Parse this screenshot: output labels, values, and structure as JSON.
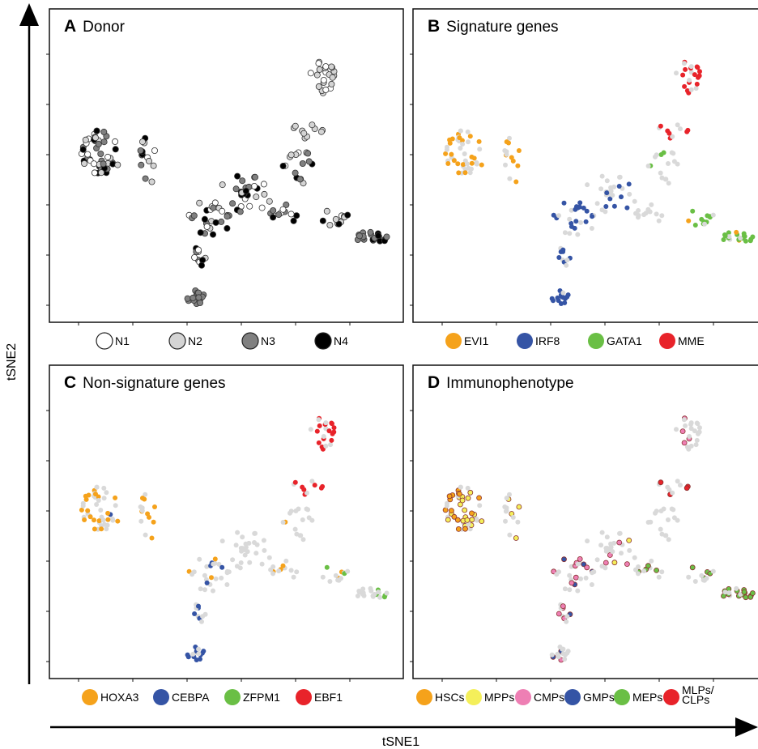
{
  "axes": {
    "x_label": "tSNE1",
    "y_label": "tSNE2"
  },
  "colors": {
    "N1": "#ffffff",
    "N2": "#d4d4d4",
    "N3": "#808080",
    "N4": "#000000",
    "orange": "#f5a21b",
    "blue": "#3554a5",
    "green": "#6abf45",
    "red": "#e8232a",
    "yellow": "#f4ef5a",
    "pink": "#ee7fb4",
    "gray_background_points": "#d9d9d9"
  },
  "chart_data": [
    {
      "type": "scatter",
      "letter": "A",
      "title": "Donor",
      "legend": [
        {
          "label": "N1",
          "color": "#ffffff"
        },
        {
          "label": "N2",
          "color": "#d4d4d4"
        },
        {
          "label": "N3",
          "color": "#808080"
        },
        {
          "label": "N4",
          "color": "#000000"
        }
      ]
    },
    {
      "type": "scatter",
      "letter": "B",
      "title": "Signature genes",
      "legend": [
        {
          "label": "EVI1",
          "color": "#f5a21b"
        },
        {
          "label": "IRF8",
          "color": "#3554a5"
        },
        {
          "label": "GATA1",
          "color": "#6abf45"
        },
        {
          "label": "MME",
          "color": "#e8232a"
        }
      ]
    },
    {
      "type": "scatter",
      "letter": "C",
      "title": "Non-signature genes",
      "legend": [
        {
          "label": "HOXA3",
          "color": "#f5a21b"
        },
        {
          "label": "CEBPA",
          "color": "#3554a5"
        },
        {
          "label": "ZFPM1",
          "color": "#6abf45"
        },
        {
          "label": "EBF1",
          "color": "#e8232a"
        }
      ]
    },
    {
      "type": "scatter",
      "letter": "D",
      "title": "Immunophenotype",
      "legend": [
        {
          "label": "HSCs",
          "color": "#f5a21b"
        },
        {
          "label": "MPPs",
          "color": "#f4ef5a"
        },
        {
          "label": "CMPs",
          "color": "#ee7fb4"
        },
        {
          "label": "GMPs",
          "color": "#3554a5"
        },
        {
          "label": "MEPs",
          "color": "#6abf45"
        },
        {
          "label": "MLPs/\nCLPs",
          "color": "#e8232a"
        }
      ]
    }
  ]
}
